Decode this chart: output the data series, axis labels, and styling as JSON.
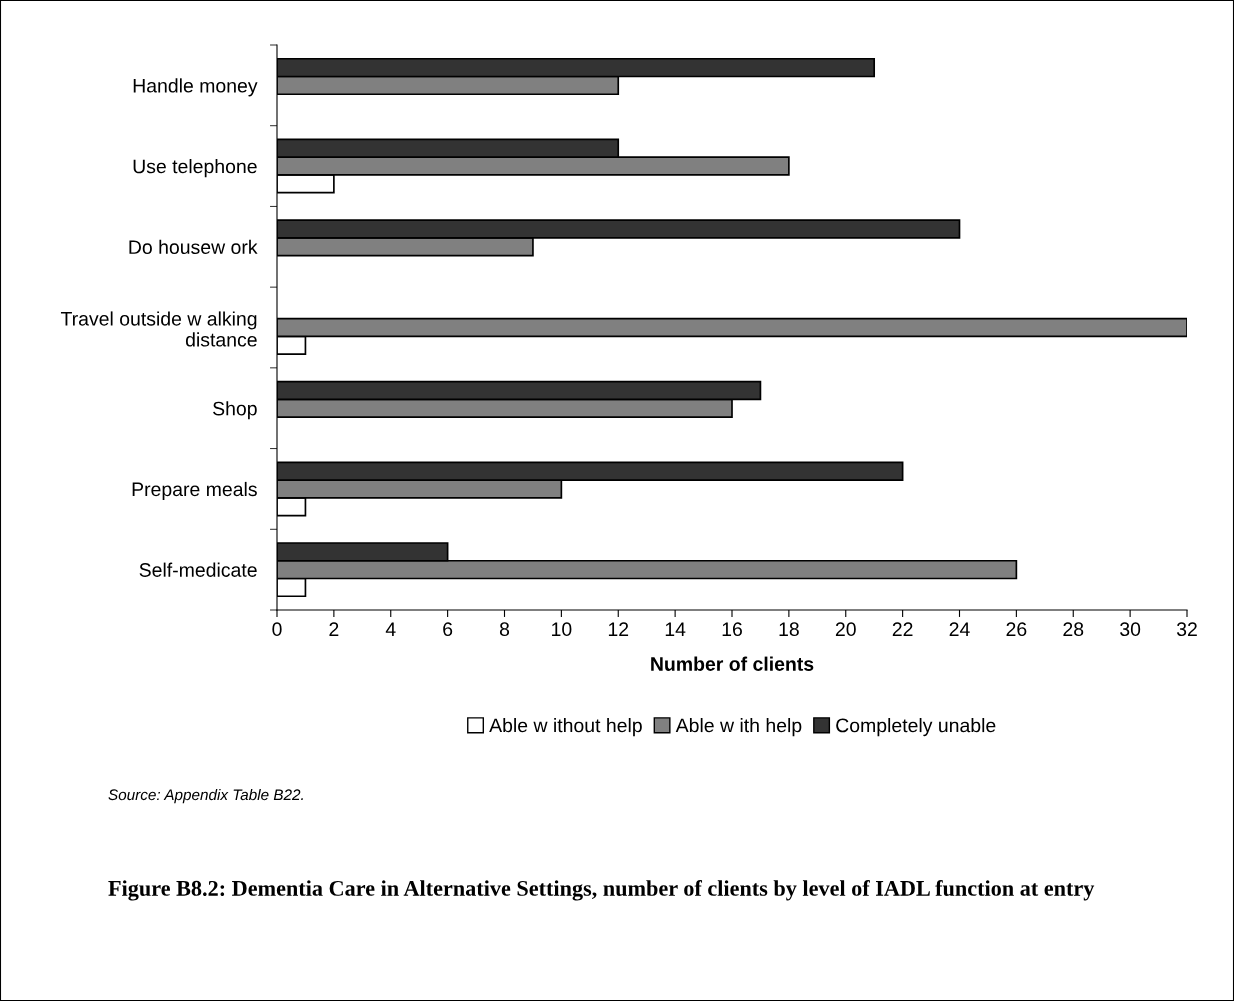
{
  "chart_data": {
    "type": "bar",
    "orientation": "horizontal",
    "title": "Figure B8.2: Dementia Care in Alternative Settings, number of clients by level of IADL function at entry",
    "xlabel": "Number of clients",
    "categories": [
      "Handle money",
      "Use telephone",
      "Do housew ork",
      "Travel outside w alking\ndistance",
      "Shop",
      "Prepare meals",
      "Self-medicate"
    ],
    "series": [
      {
        "name": "Able w ithout help",
        "color": "#ffffff",
        "values": [
          null,
          2,
          null,
          1,
          null,
          1,
          1
        ]
      },
      {
        "name": "Able w ith help",
        "color": "#808080",
        "values": [
          12,
          18,
          9,
          32,
          16,
          10,
          26
        ]
      },
      {
        "name": "Completely unable",
        "color": "#333333",
        "values": [
          21,
          12,
          24,
          null,
          17,
          22,
          6
        ]
      }
    ],
    "xlim": [
      0,
      32
    ],
    "xticks": [
      0,
      2,
      4,
      6,
      8,
      10,
      12,
      14,
      16,
      18,
      20,
      22,
      24,
      26,
      28,
      30,
      32
    ],
    "grid": false,
    "legend": "bottom",
    "annotations": [
      "Source: Appendix Table B22."
    ]
  }
}
